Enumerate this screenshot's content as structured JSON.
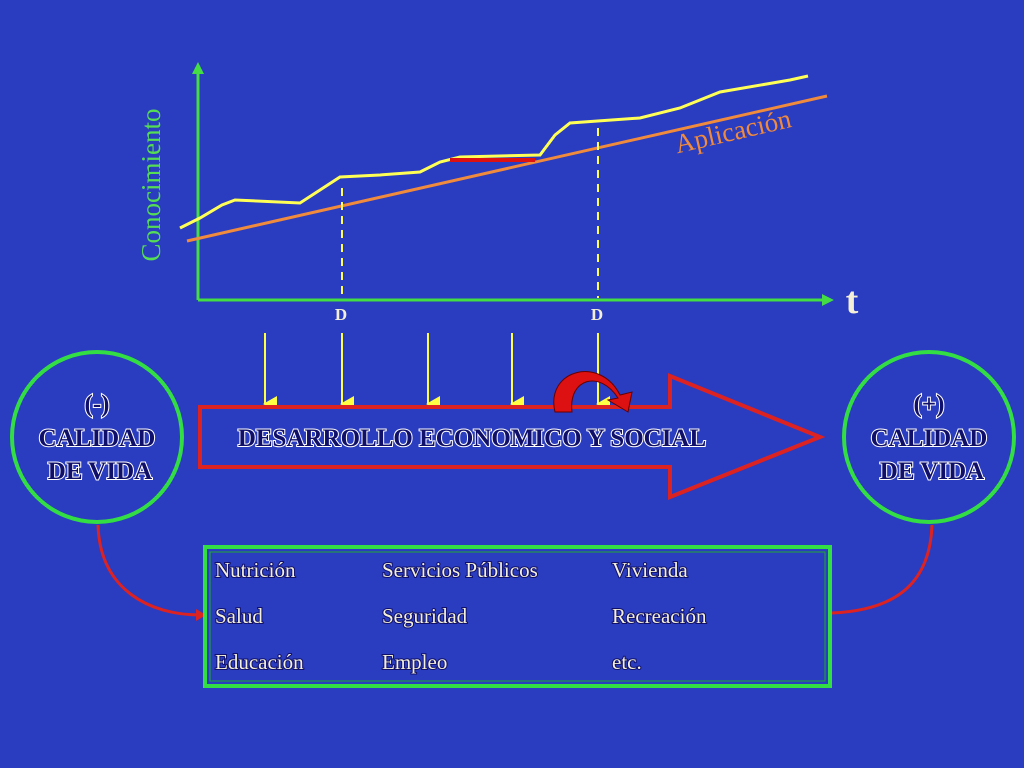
{
  "graph": {
    "y_label": "Conocimiento",
    "line_label": "Aplicación",
    "x_label": "t",
    "markers": [
      "D",
      "D"
    ]
  },
  "left_circle": {
    "sign": "(-)",
    "lines": [
      "CALIDAD",
      "DE VIDA"
    ]
  },
  "arrow": {
    "label": "DESARROLLO ECONOMICO Y SOCIAL"
  },
  "right_circle": {
    "sign": "(+)",
    "lines": [
      "CALIDAD",
      "DE VIDA"
    ]
  },
  "factors": {
    "rows": [
      [
        "Nutrición",
        "Servicios Públicos",
        "Vivienda"
      ],
      [
        "Salud",
        "Seguridad",
        "Recreación"
      ],
      [
        "Educación",
        "Empleo",
        "etc."
      ]
    ]
  }
}
